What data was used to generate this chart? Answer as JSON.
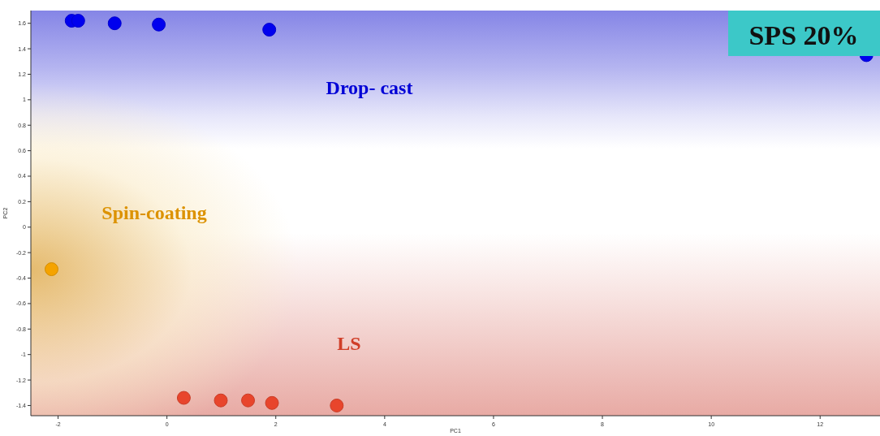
{
  "chart_data": {
    "type": "scatter",
    "title": "SPS 20%",
    "xlabel": "PC1",
    "ylabel": "PC2",
    "xlim": [
      -2.5,
      13.1
    ],
    "ylim": [
      -1.48,
      1.7
    ],
    "xticks": [
      -2,
      0,
      2,
      4,
      6,
      8,
      10,
      12
    ],
    "yticks": [
      -1.4,
      -1.2,
      -1,
      -0.8,
      -0.6,
      -0.4,
      -0.2,
      0,
      0.2,
      0.4,
      0.6,
      0.8,
      1,
      1.2,
      1.4,
      1.6
    ],
    "grid": false,
    "marker": "circle",
    "series": [
      {
        "color": "#0000ee",
        "x": [
          -1.75,
          -1.63,
          -0.96,
          -0.15,
          1.88,
          12.85
        ],
        "values": [
          1.62,
          1.62,
          1.6,
          1.59,
          1.55,
          1.35
        ]
      },
      {
        "color": "#f5a300",
        "x": [
          -2.12
        ],
        "values": [
          -0.33
        ]
      },
      {
        "color": "#e8452c",
        "x": [
          0.31,
          0.99,
          1.49,
          1.93,
          3.12
        ],
        "values": [
          -1.34,
          -1.36,
          -1.36,
          -1.38,
          -1.4
        ]
      }
    ],
    "annotations": [
      "Drop- cast",
      "Spin-coating",
      "LS"
    ]
  }
}
